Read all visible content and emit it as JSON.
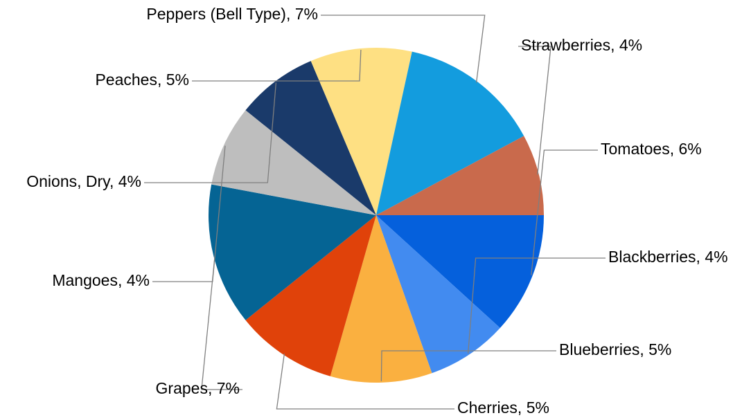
{
  "chart_data": {
    "type": "pie",
    "title": "",
    "slices": [
      {
        "label": "Tomatoes",
        "value": 6,
        "color": "#0560DC"
      },
      {
        "label": "Blackberries",
        "value": 4,
        "color": "#428BF0"
      },
      {
        "label": "Blueberries",
        "value": 5,
        "color": "#FAB040"
      },
      {
        "label": "Cherries",
        "value": 5,
        "color": "#E0420A"
      },
      {
        "label": "Grapes",
        "value": 7,
        "color": "#056494"
      },
      {
        "label": "Mangoes",
        "value": 4,
        "color": "#BEBEBE"
      },
      {
        "label": "Onions, Dry",
        "value": 4,
        "color": "#1A3A6A"
      },
      {
        "label": "Peaches",
        "value": 5,
        "color": "#FEE083"
      },
      {
        "label": "Peppers (Bell Type)",
        "value": 7,
        "color": "#139CDE"
      },
      {
        "label": "Strawberries",
        "value": 4,
        "color": "#C96A4C"
      }
    ],
    "data_labels": [
      "Tomatoes, 6%",
      "Blackberries, 4%",
      "Blueberries, 5%",
      "Cherries, 5%",
      "Grapes, 7%",
      "Mangoes, 4%",
      "Onions, Dry, 4%",
      "Peaches, 5%",
      "Peppers (Bell Type), 7%",
      "Strawberries, 4%"
    ],
    "start_angle_deg": 0,
    "direction": "clockwise",
    "legend": "none"
  }
}
